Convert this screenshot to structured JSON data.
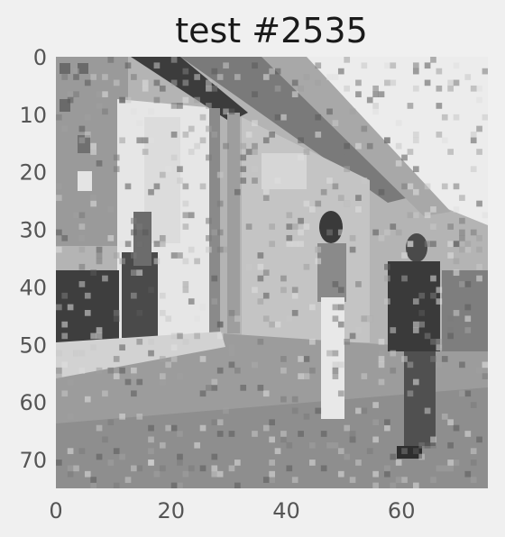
{
  "chart_data": {
    "type": "heatmap",
    "title": "test #2535",
    "xlabel": "",
    "ylabel": "",
    "xlim": [
      0,
      75
    ],
    "ylim": [
      75,
      0
    ],
    "xticks": [
      0,
      20,
      40,
      60
    ],
    "yticks": [
      0,
      10,
      20,
      30,
      40,
      50,
      60,
      70
    ],
    "grid": false,
    "colormap": "grayscale",
    "image_size": [
      75,
      75
    ],
    "content": "pixelated grayscale street scene: storefront with awning, two pedestrians walking on sidewalk"
  },
  "colors": {
    "background": "#f0f0f0",
    "dark": "#383838",
    "mid": "#8c8c8c",
    "light": "#d8d8d8",
    "white": "#f2f2f2"
  }
}
